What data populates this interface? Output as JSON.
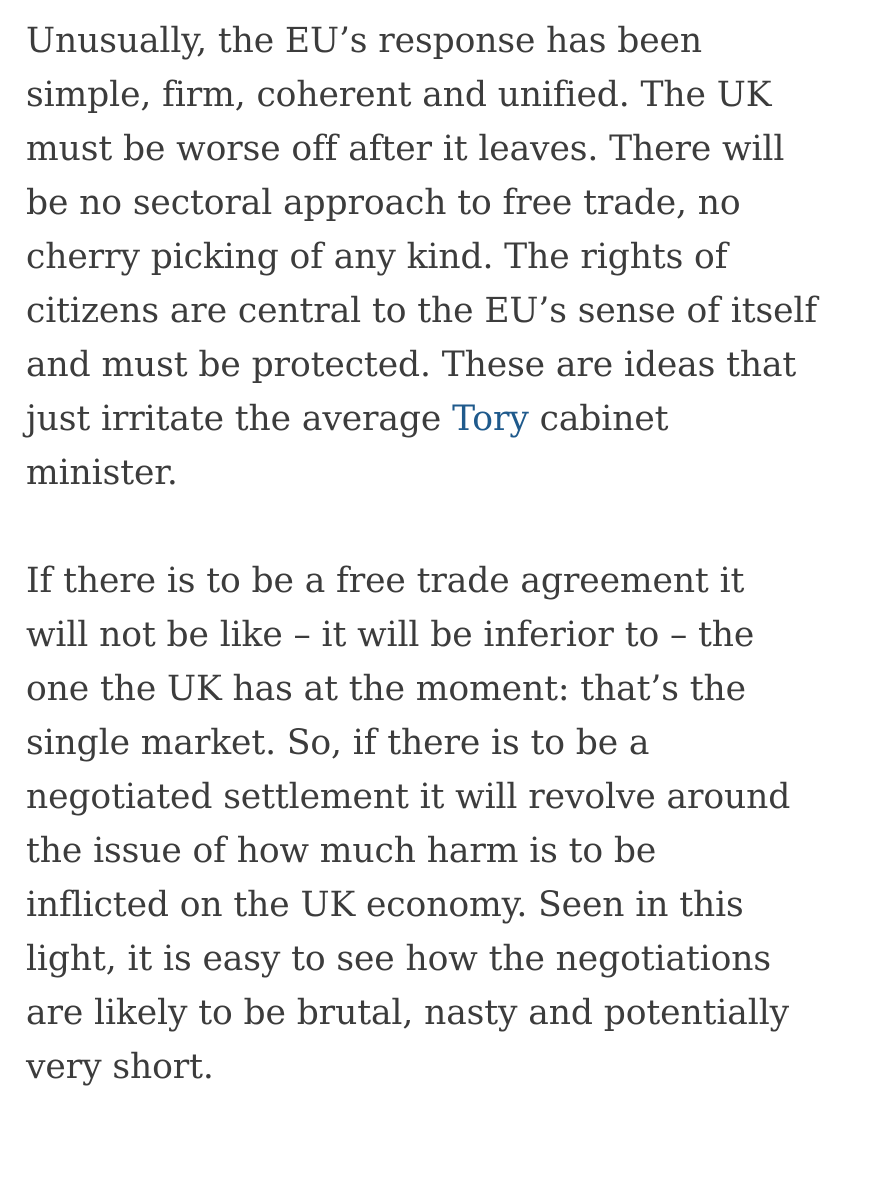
{
  "article": {
    "paragraph_1": {
      "lines": [
        "Unusually, the EU’s response has been",
        "simple, firm, coherent and unified. The UK",
        "must be worse off after it leaves. There will",
        "be no sectoral approach to free trade, no",
        "cherry picking of any kind. The rights of",
        "citizens are central to the EU’s sense of itself",
        "and must be protected. These are ideas that"
      ],
      "line_8_before_link": "just irritate the average ",
      "link_text": "Tory",
      "line_8_after_link": " cabinet",
      "line_9": "minister.",
      "link_color": "#1f5a8c"
    },
    "paragraph_2": {
      "lines": [
        "If there is to be a free trade agreement it",
        "will not be like – it will be inferior to – the",
        "one the UK has at the moment: that’s the",
        "single market. So, if there is to be a",
        "negotiated settlement it will revolve around",
        "the issue of how much harm is to be",
        "inflicted on the UK economy. Seen in this",
        "light, it is easy to see how the negotiations",
        "are likely to be brutal, nasty and potentially",
        "very short."
      ]
    }
  }
}
